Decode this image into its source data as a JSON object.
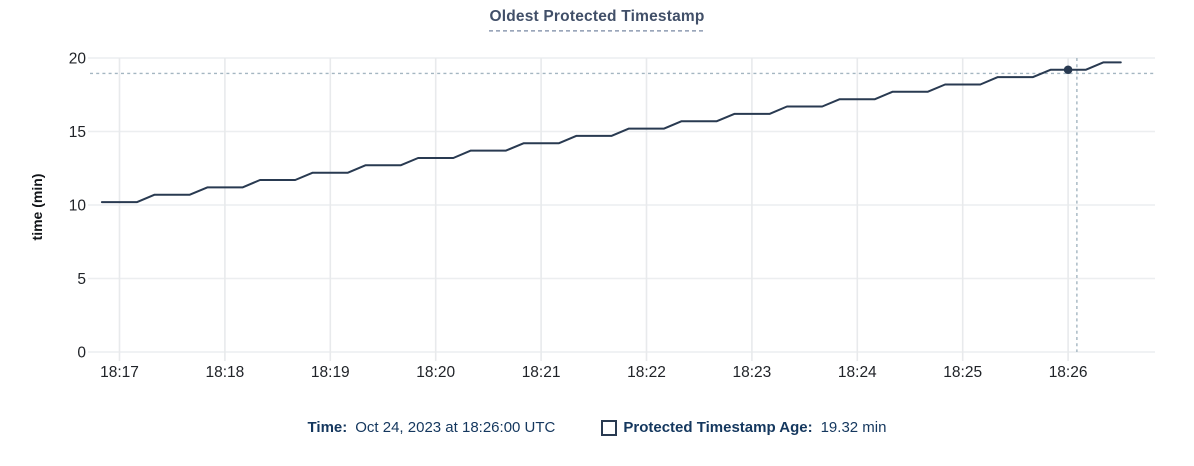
{
  "header": {
    "title": "Oldest Protected Timestamp"
  },
  "chart_data": {
    "type": "line",
    "title": "Oldest Protected Timestamp",
    "xlabel": "",
    "ylabel": "time (min)",
    "ylim": [
      0,
      20
    ],
    "yticks": [
      0,
      5,
      10,
      15,
      20
    ],
    "xticks": [
      "18:17",
      "18:18",
      "18:19",
      "18:20",
      "18:21",
      "18:22",
      "18:23",
      "18:24",
      "18:25",
      "18:26"
    ],
    "grid": true,
    "legend_position": "bottom",
    "series": [
      {
        "name": "Protected Timestamp Age",
        "unit": "min",
        "color": "#293a51",
        "start_time": "18:16:50",
        "interval_seconds": 10,
        "values": [
          10.2,
          10.2,
          10.2,
          10.7,
          10.7,
          10.7,
          11.2,
          11.2,
          11.2,
          11.7,
          11.7,
          11.7,
          12.2,
          12.2,
          12.2,
          12.7,
          12.7,
          12.7,
          13.2,
          13.2,
          13.2,
          13.7,
          13.7,
          13.7,
          14.2,
          14.2,
          14.2,
          14.7,
          14.7,
          14.7,
          15.2,
          15.2,
          15.2,
          15.7,
          15.7,
          15.7,
          16.2,
          16.2,
          16.2,
          16.7,
          16.7,
          16.7,
          17.2,
          17.2,
          17.2,
          17.7,
          17.7,
          17.7,
          18.2,
          18.2,
          18.2,
          18.7,
          18.7,
          18.7,
          19.2,
          19.2,
          19.2,
          19.7,
          19.7
        ]
      }
    ],
    "hover": {
      "point_time": "18:26:00",
      "point_value_min": 19.32,
      "crosshair_time": "18:26:05",
      "crosshair_value_min": 18.95
    }
  },
  "footer": {
    "time_label": "Time:",
    "time_value": "Oct 24, 2023 at 18:26:00 UTC",
    "series_label": "Protected Timestamp Age:",
    "series_value": "19.32 min"
  },
  "colors": {
    "series_line": "#293a51",
    "crosshair": "#a4b6c1",
    "gridline": "#eceef0",
    "title_text": "#414f68",
    "axis_text": "#202328",
    "footer_text": "#14375e",
    "background": "#ffffff"
  }
}
